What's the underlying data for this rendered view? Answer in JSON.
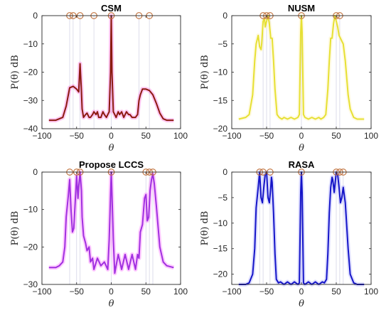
{
  "chart_data": [
    {
      "type": "line",
      "title": "CSM",
      "xlabel": "θ",
      "ylabel": "P(θ) dB",
      "xlim": [
        -100,
        100
      ],
      "ylim": [
        -40,
        0
      ],
      "xticks": [
        -100,
        -50,
        0,
        50,
        100
      ],
      "yticks": [
        -40,
        -30,
        -20,
        -10,
        0
      ],
      "color": "#8b1a10",
      "halo_color": "#ff33cc",
      "marker_angles": [
        -60,
        -55,
        -45,
        -25,
        0,
        40,
        55
      ],
      "x": [
        -90,
        -80,
        -70,
        -65,
        -60,
        -55,
        -50,
        -47,
        -45,
        -43,
        -42,
        -40,
        -37,
        -35,
        -32,
        -30,
        -27,
        -25,
        -22,
        -20,
        -18,
        -15,
        -12,
        -10,
        -7,
        -5,
        -3,
        -1,
        0,
        1,
        3,
        5,
        7,
        10,
        12,
        15,
        18,
        20,
        22,
        25,
        27,
        30,
        35,
        38,
        40,
        42,
        45,
        50,
        55,
        60,
        65,
        70,
        75,
        80,
        90
      ],
      "values": [
        -37,
        -37,
        -36,
        -32,
        -25.5,
        -25,
        -26,
        -27,
        -17,
        -27,
        -33,
        -36,
        -35,
        -34.5,
        -36,
        -36,
        -35,
        -34,
        -35,
        -34,
        -36,
        -36,
        -34,
        -35,
        -36,
        -35,
        -34,
        -20,
        0,
        -20,
        -34,
        -35,
        -36,
        -34,
        -35,
        -34,
        -36,
        -35,
        -34,
        -35,
        -35,
        -36,
        -36,
        -35,
        -30,
        -28,
        -26,
        -26,
        -26.5,
        -28,
        -31,
        -34.5,
        -36.5,
        -37,
        -37
      ]
    },
    {
      "type": "line",
      "title": "NUSM",
      "xlabel": "θ",
      "ylabel": "P(θ) dB",
      "xlim": [
        -100,
        100
      ],
      "ylim": [
        -20,
        0
      ],
      "xticks": [
        -100,
        -50,
        0,
        50,
        100
      ],
      "yticks": [
        -20,
        -15,
        -10,
        -5,
        0
      ],
      "color": "#e6e033",
      "halo_color": "#ffee99",
      "marker_angles": [
        -55,
        -50,
        -45,
        0,
        50,
        55
      ],
      "x": [
        -90,
        -80,
        -75,
        -70,
        -67,
        -65,
        -62,
        -60,
        -58,
        -57,
        -55,
        -53,
        -52,
        -50,
        -48,
        -46,
        -44,
        -42,
        -40,
        -38,
        -35,
        -32,
        -28,
        -25,
        -20,
        -15,
        -10,
        -5,
        -3,
        -1,
        0,
        1,
        3,
        5,
        10,
        15,
        20,
        25,
        28,
        32,
        35,
        38,
        40,
        42,
        44,
        46,
        48,
        50,
        52,
        54,
        56,
        58,
        60,
        63,
        67,
        70,
        75,
        80,
        90
      ],
      "values": [
        -18.3,
        -18,
        -17.5,
        -14,
        -8,
        -5,
        -3.5,
        -5.5,
        -6,
        -5,
        -1,
        -0.5,
        -2,
        -1,
        0,
        -1.5,
        -4,
        -4,
        -8,
        -13,
        -17.5,
        -18,
        -18.3,
        -18,
        -18.3,
        -18,
        -18.3,
        -18,
        -17.5,
        -3,
        0,
        -3,
        -17.5,
        -18,
        -18.3,
        -18,
        -18.3,
        -18,
        -18.3,
        -18,
        -17.5,
        -13,
        -8,
        -4,
        -4,
        -1.5,
        0,
        -1,
        -2,
        -3.5,
        -4,
        -4.5,
        -5,
        -8,
        -14,
        -16.5,
        -18,
        -18.3,
        -18.3
      ]
    },
    {
      "type": "line",
      "title": "Propose LCCS",
      "xlabel": "θ",
      "ylabel": "P(θ) dB",
      "xlim": [
        -100,
        100
      ],
      "ylim": [
        -30,
        0
      ],
      "xticks": [
        -100,
        -50,
        0,
        50,
        100
      ],
      "yticks": [
        -30,
        -20,
        -10,
        0
      ],
      "color": "#a030e0",
      "halo_color": "#ff40ff",
      "marker_angles": [
        -60,
        -50,
        -45,
        0,
        50,
        55,
        60
      ],
      "x": [
        -90,
        -80,
        -75,
        -70,
        -67,
        -65,
        -62,
        -60,
        -58,
        -56,
        -54,
        -52,
        -50,
        -48,
        -47,
        -45,
        -43,
        -42,
        -40,
        -37,
        -35,
        -32,
        -30,
        -27,
        -25,
        -20,
        -15,
        -10,
        -5,
        -3,
        -1,
        0,
        1,
        3,
        5,
        10,
        15,
        20,
        25,
        30,
        35,
        38,
        40,
        42,
        45,
        48,
        50,
        52,
        54,
        56,
        58,
        60,
        62,
        65,
        70,
        75,
        80,
        90
      ],
      "values": [
        -25.5,
        -25.5,
        -25,
        -24,
        -20,
        -12,
        -6.5,
        -2,
        -10,
        -16,
        -15,
        -8,
        -1,
        -7,
        -4,
        0,
        -5,
        -12,
        -17,
        -19,
        -21,
        -20,
        -24,
        -23,
        -26,
        -23,
        -25,
        -24,
        -26,
        -18,
        -6,
        0,
        -6,
        -18,
        -27,
        -22,
        -26,
        -22,
        -26,
        -22,
        -26,
        -22,
        -23,
        -16,
        -14,
        -7,
        -6,
        -13,
        -12,
        -5,
        -2,
        -0.5,
        -3,
        -9,
        -20,
        -24,
        -25,
        -25.5
      ]
    },
    {
      "type": "line",
      "title": "RASA",
      "xlabel": "θ",
      "ylabel": "P(θ) dB",
      "xlim": [
        -100,
        100
      ],
      "ylim": [
        -22,
        0
      ],
      "xticks": [
        -100,
        -50,
        0,
        50,
        100
      ],
      "yticks": [
        -20,
        -15,
        -10,
        -5,
        0
      ],
      "color": "#1515c8",
      "halo_color": "#8888ff",
      "marker_angles": [
        -60,
        -55,
        -45,
        0,
        50,
        55,
        60
      ],
      "x": [
        -90,
        -80,
        -75,
        -70,
        -67,
        -65,
        -62,
        -60,
        -58,
        -56,
        -54,
        -52,
        -50,
        -48,
        -46,
        -44,
        -43,
        -42,
        -40,
        -38,
        -36,
        -33,
        -30,
        -25,
        -20,
        -15,
        -10,
        -5,
        -3,
        -1,
        0,
        1,
        3,
        5,
        10,
        15,
        20,
        25,
        30,
        33,
        36,
        38,
        40,
        42,
        44,
        45,
        47,
        50,
        52,
        54,
        56,
        58,
        60,
        63,
        67,
        70,
        75,
        80,
        90
      ],
      "values": [
        -22,
        -22,
        -21.7,
        -20,
        -15,
        -7,
        -3,
        0,
        -5,
        -6,
        -3,
        -0.5,
        0,
        -5,
        -6,
        -3,
        -1,
        -2,
        -8,
        -16,
        -21,
        -21.7,
        -21.5,
        -22,
        -21.5,
        -22,
        -21.5,
        -22,
        -21.7,
        -4,
        0,
        -4,
        -21.7,
        -22,
        -21.5,
        -22,
        -21.5,
        -22,
        -21.5,
        -21.7,
        -21,
        -16,
        -8,
        -3,
        -1,
        -1.5,
        -4,
        0,
        -0.5,
        -3,
        -6,
        -5,
        -3,
        -6,
        -15,
        -20,
        -21.7,
        -22,
        -22
      ]
    }
  ]
}
